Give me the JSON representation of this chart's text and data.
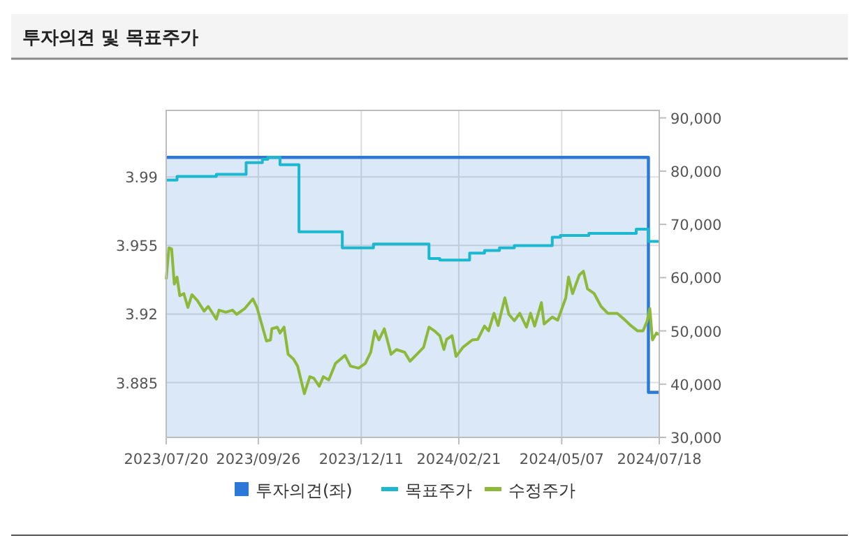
{
  "chart_data": {
    "type": "line",
    "title": "투자의견 및 목표주가",
    "legend": "bottom",
    "grid": true,
    "xlim": [
      "2023-07-20",
      "2024-07-18"
    ],
    "xticks": [
      {
        "value": "2023-07-20",
        "label": "2023/07/20"
      },
      {
        "value": "2023-09-26",
        "label": "2023/09/26"
      },
      {
        "value": "2023-12-11",
        "label": "2023/12/11"
      },
      {
        "value": "2024-02-21",
        "label": "2024/02/21"
      },
      {
        "value": "2024-05-07",
        "label": "2024/05/07"
      },
      {
        "value": "2024-07-18",
        "label": "2024/07/18"
      }
    ],
    "ylim": [
      3.857,
      4.024
    ],
    "yticks": [
      3.885,
      3.92,
      3.955,
      3.99
    ],
    "y2lim": [
      30000,
      91400
    ],
    "y2ticks": [
      {
        "value": 30000,
        "label": "30,000"
      },
      {
        "value": 40000,
        "label": "40,000"
      },
      {
        "value": 50000,
        "label": "50,000"
      },
      {
        "value": 60000,
        "label": "60,000"
      },
      {
        "value": 70000,
        "label": "70,000"
      },
      {
        "value": 80000,
        "label": "80,000"
      },
      {
        "value": 90000,
        "label": "90,000"
      }
    ],
    "series": [
      {
        "name": "투자의견(좌)",
        "type": "area",
        "axis": "y",
        "color": "#2b78d8",
        "x": [
          "2023-07-20",
          "2024-07-10",
          "2024-07-10",
          "2024-07-18"
        ],
        "values": [
          4.0,
          4.0,
          3.88,
          3.88
        ]
      },
      {
        "name": "목표주가",
        "type": "step",
        "axis": "y2",
        "color": "#1bb8d0",
        "x": [
          "2023-07-20",
          "2023-07-28",
          "2023-08-26",
          "2023-09-17",
          "2023-09-29",
          "2023-10-03",
          "2023-10-12",
          "2023-10-26",
          "2023-11-27",
          "2023-12-20",
          "2024-01-30",
          "2024-02-07",
          "2024-02-29",
          "2024-03-11",
          "2024-03-22",
          "2024-04-02",
          "2024-04-30",
          "2024-05-06",
          "2024-05-27",
          "2024-07-01",
          "2024-07-10",
          "2024-07-18"
        ],
        "values": [
          78300,
          79000,
          79400,
          81600,
          82200,
          82600,
          81200,
          68600,
          65600,
          66300,
          63600,
          63300,
          64600,
          65100,
          65600,
          66000,
          67600,
          67900,
          68300,
          69100,
          66800,
          66800
        ]
      },
      {
        "name": "수정주가",
        "type": "line",
        "axis": "y2",
        "color": "#8db83a",
        "x": [
          "2023-07-20",
          "2023-07-22",
          "2023-07-24",
          "2023-07-26",
          "2023-07-28",
          "2023-07-30",
          "2023-08-02",
          "2023-08-05",
          "2023-08-08",
          "2023-08-12",
          "2023-08-17",
          "2023-08-20",
          "2023-08-26",
          "2023-08-28",
          "2023-09-02",
          "2023-09-07",
          "2023-09-10",
          "2023-09-16",
          "2023-09-22",
          "2023-09-25",
          "2023-10-02",
          "2023-10-05",
          "2023-10-06",
          "2023-10-10",
          "2023-10-12",
          "2023-10-15",
          "2023-10-18",
          "2023-10-22",
          "2023-10-25",
          "2023-10-30",
          "2023-11-03",
          "2023-11-06",
          "2023-11-10",
          "2023-11-13",
          "2023-11-17",
          "2023-11-22",
          "2023-11-29",
          "2023-12-03",
          "2023-12-09",
          "2023-12-14",
          "2023-12-18",
          "2023-12-21",
          "2023-12-24",
          "2023-12-28",
          "2024-01-02",
          "2024-01-06",
          "2024-01-12",
          "2024-01-16",
          "2024-01-21",
          "2024-01-26",
          "2024-01-30",
          "2024-02-03",
          "2024-02-07",
          "2024-02-10",
          "2024-02-12",
          "2024-02-16",
          "2024-02-19",
          "2024-02-24",
          "2024-03-02",
          "2024-03-06",
          "2024-03-11",
          "2024-03-14",
          "2024-03-18",
          "2024-03-21",
          "2024-03-26",
          "2024-03-29",
          "2024-04-02",
          "2024-04-06",
          "2024-04-11",
          "2024-04-14",
          "2024-04-17",
          "2024-04-22",
          "2024-04-24",
          "2024-04-30",
          "2024-05-04",
          "2024-05-10",
          "2024-05-12",
          "2024-05-15",
          "2024-05-20",
          "2024-05-23",
          "2024-05-26",
          "2024-05-31",
          "2024-06-05",
          "2024-06-10",
          "2024-06-17",
          "2024-06-22",
          "2024-06-27",
          "2024-07-02",
          "2024-07-06",
          "2024-07-09",
          "2024-07-11",
          "2024-07-13",
          "2024-07-16",
          "2024-07-18"
        ],
        "values": [
          59700,
          65600,
          65400,
          58800,
          60100,
          56600,
          57000,
          54400,
          56800,
          55700,
          53700,
          54600,
          52200,
          53900,
          53500,
          53900,
          53100,
          54200,
          56000,
          54400,
          48100,
          48300,
          50400,
          50700,
          49600,
          50700,
          45600,
          44700,
          43400,
          38200,
          41400,
          41100,
          39600,
          41400,
          40800,
          43900,
          45400,
          43400,
          43000,
          43900,
          46000,
          50000,
          48300,
          50400,
          45600,
          46500,
          46000,
          44300,
          45600,
          46900,
          50700,
          50000,
          49100,
          46500,
          48400,
          49100,
          45200,
          46900,
          48300,
          48400,
          50900,
          50000,
          53300,
          51000,
          56200,
          53100,
          51900,
          53300,
          50700,
          53300,
          50900,
          55300,
          51300,
          52600,
          52000,
          56200,
          60100,
          57000,
          60500,
          61200,
          57900,
          57000,
          54600,
          53300,
          53300,
          52200,
          51000,
          50000,
          50000,
          51800,
          54200,
          48300,
          49600,
          49300
        ]
      }
    ]
  }
}
